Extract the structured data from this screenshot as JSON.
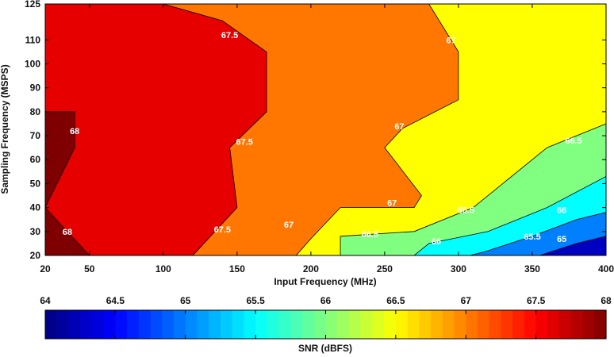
{
  "chart_data": {
    "type": "heatmap",
    "subtype": "filled-contour",
    "title": "",
    "xlabel": "Input Frequency (MHz)",
    "ylabel": "Sampling Frequency (MSPS)",
    "xlim": [
      20,
      400
    ],
    "ylim": [
      20,
      125
    ],
    "x_ticks": [
      20,
      50,
      100,
      150,
      200,
      250,
      300,
      350,
      400
    ],
    "y_ticks": [
      20,
      30,
      40,
      50,
      60,
      70,
      80,
      90,
      100,
      110,
      125
    ],
    "grid": false,
    "colorbar": {
      "label": "SNR (dBFS)",
      "range": [
        64,
        68
      ],
      "ticks": [
        64,
        64.5,
        65,
        65.5,
        66,
        66.5,
        67,
        67.5,
        68
      ],
      "colormap": "jet",
      "position": "bottom"
    },
    "regions": [
      {
        "level": 66.75,
        "color": "#ffff00",
        "points": [
          [
            20,
            20
          ],
          [
            400,
            20
          ],
          [
            400,
            125
          ],
          [
            20,
            125
          ]
        ]
      },
      {
        "level": 67.25,
        "color": "#ff7700",
        "points": [
          [
            20,
            20
          ],
          [
            190,
            20
          ],
          [
            200,
            27
          ],
          [
            220,
            40
          ],
          [
            270,
            40
          ],
          [
            275,
            45
          ],
          [
            250,
            65
          ],
          [
            262,
            73
          ],
          [
            300,
            85
          ],
          [
            300,
            105
          ],
          [
            280,
            125
          ],
          [
            20,
            125
          ]
        ]
      },
      {
        "level": 67.75,
        "color": "#e60000",
        "points": [
          [
            20,
            20
          ],
          [
            120,
            20
          ],
          [
            150,
            40
          ],
          [
            145,
            65
          ],
          [
            170,
            80
          ],
          [
            170,
            105
          ],
          [
            140,
            118
          ],
          [
            100,
            125
          ],
          [
            20,
            125
          ]
        ]
      },
      {
        "level": 68,
        "color": "#7f0000",
        "points": [
          [
            20,
            20
          ],
          [
            20,
            80
          ],
          [
            40,
            80
          ],
          [
            40,
            65
          ],
          [
            20,
            40
          ],
          [
            50,
            20
          ]
        ]
      },
      {
        "level": 66.25,
        "color": "#80ff80",
        "points": [
          [
            220,
            20
          ],
          [
            400,
            20
          ],
          [
            400,
            75
          ],
          [
            360,
            65
          ],
          [
            310,
            40
          ],
          [
            270,
            30
          ],
          [
            220,
            28
          ]
        ]
      },
      {
        "level": 65.75,
        "color": "#00ffff",
        "points": [
          [
            270,
            20
          ],
          [
            400,
            20
          ],
          [
            400,
            53
          ],
          [
            360,
            40
          ],
          [
            320,
            30
          ],
          [
            280,
            25
          ]
        ]
      },
      {
        "level": 65.25,
        "color": "#0080ff",
        "points": [
          [
            308,
            20
          ],
          [
            400,
            20
          ],
          [
            400,
            38
          ],
          [
            380,
            35
          ],
          [
            350,
            28
          ],
          [
            320,
            22
          ]
        ]
      },
      {
        "level": 64.75,
        "color": "#0000c0",
        "points": [
          [
            355,
            20
          ],
          [
            400,
            20
          ],
          [
            400,
            28
          ],
          [
            380,
            25
          ]
        ]
      }
    ],
    "contour_labels": [
      {
        "text": "67.5",
        "x": 145,
        "y": 112
      },
      {
        "text": "67.5",
        "x": 155,
        "y": 67.5
      },
      {
        "text": "67.5",
        "x": 140,
        "y": 31
      },
      {
        "text": "67",
        "x": 295,
        "y": 110
      },
      {
        "text": "67",
        "x": 260,
        "y": 74
      },
      {
        "text": "67",
        "x": 255,
        "y": 42
      },
      {
        "text": "67",
        "x": 185,
        "y": 33
      },
      {
        "text": "68",
        "x": 40,
        "y": 72
      },
      {
        "text": "68",
        "x": 35,
        "y": 30
      },
      {
        "text": "66.5",
        "x": 378,
        "y": 68
      },
      {
        "text": "66.5",
        "x": 305,
        "y": 39
      },
      {
        "text": "66.5",
        "x": 240,
        "y": 29
      },
      {
        "text": "66",
        "x": 370,
        "y": 39
      },
      {
        "text": "66",
        "x": 285,
        "y": 26
      },
      {
        "text": "65.5",
        "x": 350,
        "y": 28
      },
      {
        "text": "65",
        "x": 370,
        "y": 27
      }
    ]
  }
}
